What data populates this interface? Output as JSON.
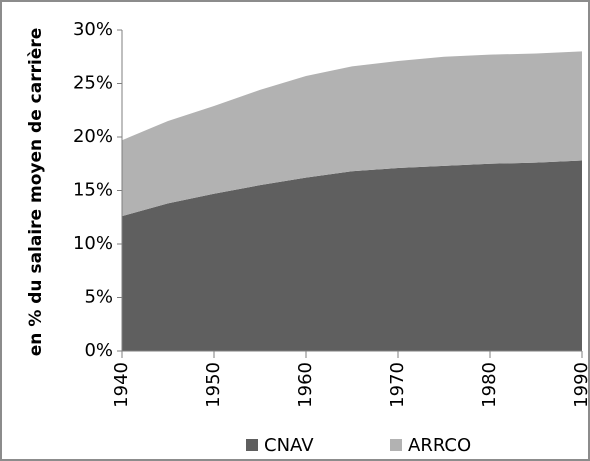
{
  "chart_data": {
    "type": "stacked-area",
    "y_label": "en % du salaire moyen de carrière",
    "x": [
      1940,
      1945,
      1950,
      1955,
      1960,
      1965,
      1970,
      1975,
      1980,
      1985,
      1990
    ],
    "series": [
      {
        "name": "CNAV",
        "color": "#5f5f5f",
        "values": [
          12.6,
          13.8,
          14.7,
          15.5,
          16.2,
          16.8,
          17.1,
          17.3,
          17.5,
          17.6,
          17.8
        ]
      },
      {
        "name": "ARRCO",
        "color": "#b2b2b2",
        "values": [
          7.1,
          7.7,
          8.2,
          8.9,
          9.5,
          9.8,
          10.0,
          10.2,
          10.2,
          10.2,
          10.2
        ]
      }
    ],
    "xlim": [
      1940,
      1990
    ],
    "xticks": [
      1940,
      1950,
      1960,
      1970,
      1980,
      1990
    ],
    "ylim": [
      0,
      30
    ],
    "yticks": [
      {
        "value": 0,
        "label": "0%"
      },
      {
        "value": 5,
        "label": "5%"
      },
      {
        "value": 10,
        "label": "10%"
      },
      {
        "value": 15,
        "label": "15%"
      },
      {
        "value": 20,
        "label": "20%"
      },
      {
        "value": 25,
        "label": "25%"
      },
      {
        "value": 30,
        "label": "30%"
      }
    ],
    "legend": "bottom",
    "grid": false
  }
}
